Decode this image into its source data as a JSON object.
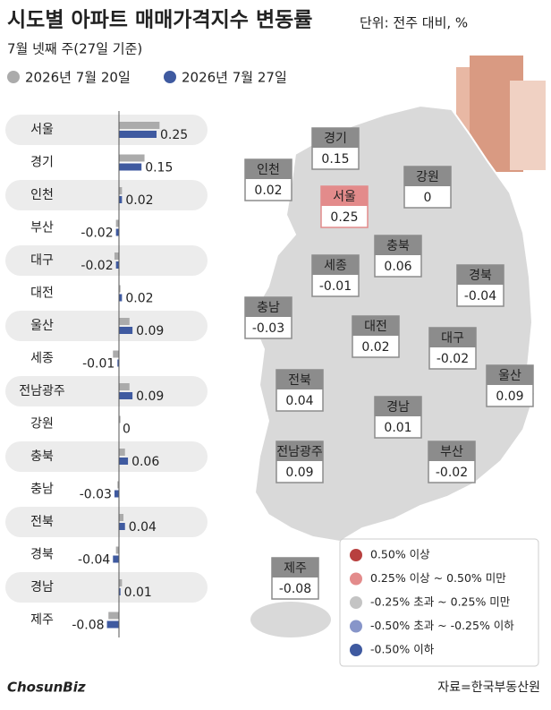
{
  "chart_data": {
    "type": "hbar",
    "title": "시도별 아파트 매매가격지수 변동률",
    "unit": "단위: 전주 대비, %",
    "subtitle": "7월 넷째 주(27일 기준)",
    "categories": [
      "서울",
      "경기",
      "인천",
      "부산",
      "대구",
      "대전",
      "울산",
      "세종",
      "전남광주",
      "강원",
      "충북",
      "충남",
      "전북",
      "경북",
      "경남",
      "제주"
    ],
    "series": [
      {
        "name": "2026년 7월 20일",
        "color": "#ababab",
        "values": [
          0.27,
          0.17,
          0.02,
          -0.02,
          -0.03,
          0.01,
          0.07,
          -0.04,
          0.07,
          0.01,
          0.04,
          -0.01,
          0.03,
          -0.02,
          0.02,
          -0.07
        ]
      },
      {
        "name": "2026년 7월 27일",
        "color": "#3f5aa0",
        "values": [
          0.25,
          0.15,
          0.02,
          -0.02,
          -0.02,
          0.02,
          0.09,
          -0.01,
          0.09,
          0,
          0.06,
          -0.03,
          0.04,
          -0.04,
          0.01,
          -0.08
        ]
      }
    ],
    "map_box_colors": [
      "#e38b8b",
      "#8c8c8c",
      "#8c8c8c",
      "#8c8c8c",
      "#8c8c8c",
      "#8c8c8c",
      "#8c8c8c",
      "#8c8c8c",
      "#8c8c8c",
      "#8c8c8c",
      "#8c8c8c",
      "#8c8c8c",
      "#8c8c8c",
      "#8c8c8c",
      "#8c8c8c",
      "#8c8c8c"
    ],
    "map_legend": [
      {
        "label": "0.50% 이상",
        "color": "#b8403f"
      },
      {
        "label": "0.25% 이상 ~ 0.50% 미만",
        "color": "#e38b8b"
      },
      {
        "label": "-0.25% 초과 ~ 0.25% 미만",
        "color": "#c4c4c4"
      },
      {
        "label": "-0.50% 초과 ~ -0.25% 이하",
        "color": "#8795c9"
      },
      {
        "label": "-0.50% 이하",
        "color": "#3f5aa0"
      }
    ],
    "source": "자료=한국부동산원",
    "logo": "ChosunBiz"
  }
}
